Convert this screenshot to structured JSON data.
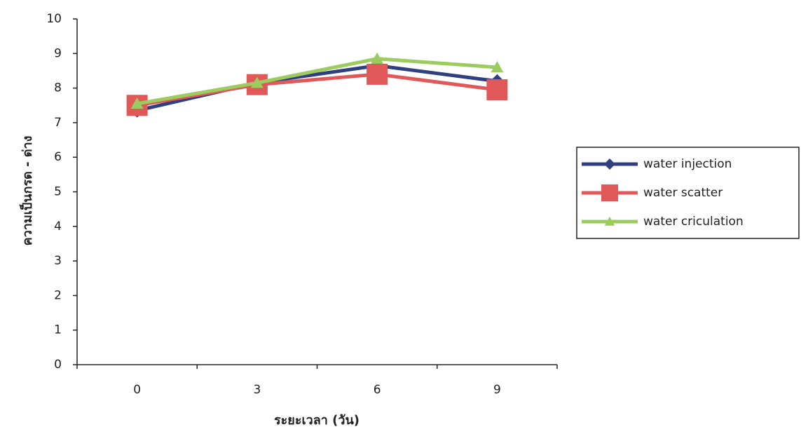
{
  "chart_data": {
    "type": "line",
    "x_label": "ระยะเวลา (วัน)",
    "y_label": "ความเป็นกรด - ด่าง",
    "categories": [
      "0",
      "3",
      "6",
      "9"
    ],
    "series": [
      {
        "name": "water injection",
        "color": "#2f3f80",
        "marker": "diamond",
        "values": [
          7.35,
          8.15,
          8.65,
          8.2
        ]
      },
      {
        "name": "water scatter",
        "color": "#e05858",
        "marker": "square",
        "values": [
          7.5,
          8.1,
          8.4,
          7.95
        ]
      },
      {
        "name": "water criculation",
        "color": "#9ccc60",
        "marker": "triangle",
        "values": [
          7.55,
          8.15,
          8.85,
          8.6
        ]
      }
    ],
    "ylim": [
      0,
      10
    ],
    "yticks": [
      0,
      1,
      2,
      3,
      4,
      5,
      6,
      7,
      8,
      9,
      10
    ],
    "grid": false,
    "legend": "right"
  }
}
